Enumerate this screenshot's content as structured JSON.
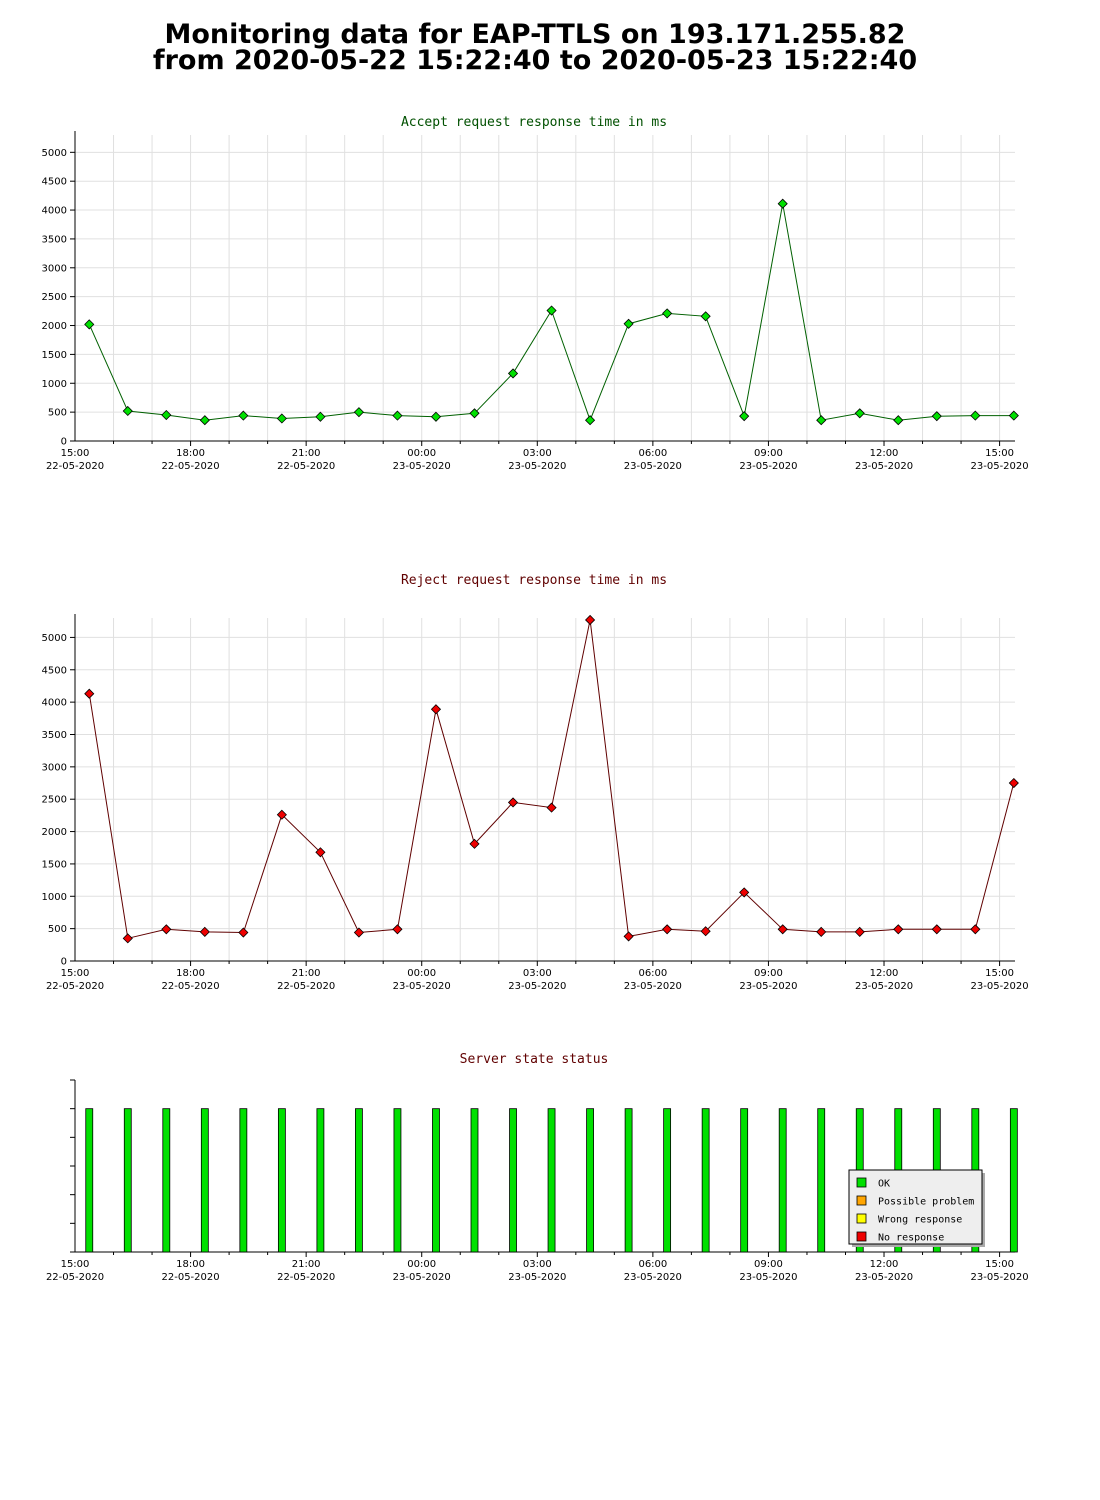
{
  "page": {
    "title_line1": "Monitoring data for EAP-TTLS on 193.171.255.82",
    "title_line2": "from 2020-05-22 15:22:40 to 2020-05-23 15:22:40"
  },
  "colors": {
    "accept_line": "#006000",
    "accept_marker": "#00e000",
    "reject_line": "#600000",
    "reject_marker": "#ee0000",
    "accept_title": "#005000",
    "reject_title": "#600000",
    "status_title": "#600000",
    "ok": "#00e000",
    "possible_problem": "#ffa500",
    "wrong_response": "#ffff00",
    "no_response": "#ee0000",
    "grid": "#e0e0e0"
  },
  "chart_data": [
    {
      "type": "line",
      "title": "Accept request response time in ms",
      "ylim": [
        0,
        5300
      ],
      "yticks": [
        0,
        500,
        1000,
        1500,
        2000,
        2500,
        3000,
        3500,
        4000,
        4500,
        5000
      ],
      "xlim_hours": [
        0,
        24.4
      ],
      "xticks": [
        {
          "hour": 0,
          "time": "15:00",
          "date": "22-05-2020"
        },
        {
          "hour": 3,
          "time": "18:00",
          "date": "22-05-2020"
        },
        {
          "hour": 6,
          "time": "21:00",
          "date": "22-05-2020"
        },
        {
          "hour": 9,
          "time": "00:00",
          "date": "23-05-2020"
        },
        {
          "hour": 12,
          "time": "03:00",
          "date": "23-05-2020"
        },
        {
          "hour": 15,
          "time": "06:00",
          "date": "23-05-2020"
        },
        {
          "hour": 18,
          "time": "09:00",
          "date": "23-05-2020"
        },
        {
          "hour": 21,
          "time": "12:00",
          "date": "23-05-2020"
        },
        {
          "hour": 24,
          "time": "15:00",
          "date": "23-05-2020"
        }
      ],
      "grid": true,
      "x": [
        0.37,
        1.37,
        2.37,
        3.37,
        4.37,
        5.37,
        6.37,
        7.37,
        8.37,
        9.37,
        10.37,
        11.37,
        12.37,
        13.37,
        14.37,
        15.37,
        16.37,
        17.37,
        18.37,
        19.37,
        20.37,
        21.37,
        22.37,
        23.37,
        24.37
      ],
      "values": [
        2020,
        520,
        450,
        360,
        440,
        390,
        420,
        500,
        440,
        420,
        480,
        1170,
        2260,
        360,
        2030,
        2210,
        2160,
        430,
        4110,
        360,
        480,
        360,
        430,
        440,
        440
      ]
    },
    {
      "type": "line",
      "title": "Reject request response time in ms",
      "ylim": [
        0,
        5300
      ],
      "yticks": [
        0,
        500,
        1000,
        1500,
        2000,
        2500,
        3000,
        3500,
        4000,
        4500,
        5000
      ],
      "xlim_hours": [
        0,
        24.4
      ],
      "xticks": [
        {
          "hour": 0,
          "time": "15:00",
          "date": "22-05-2020"
        },
        {
          "hour": 3,
          "time": "18:00",
          "date": "22-05-2020"
        },
        {
          "hour": 6,
          "time": "21:00",
          "date": "22-05-2020"
        },
        {
          "hour": 9,
          "time": "00:00",
          "date": "23-05-2020"
        },
        {
          "hour": 12,
          "time": "03:00",
          "date": "23-05-2020"
        },
        {
          "hour": 15,
          "time": "06:00",
          "date": "23-05-2020"
        },
        {
          "hour": 18,
          "time": "09:00",
          "date": "23-05-2020"
        },
        {
          "hour": 21,
          "time": "12:00",
          "date": "23-05-2020"
        },
        {
          "hour": 24,
          "time": "15:00",
          "date": "23-05-2020"
        }
      ],
      "grid": true,
      "x": [
        0.37,
        1.37,
        2.37,
        3.37,
        4.37,
        5.37,
        6.37,
        7.37,
        8.37,
        9.37,
        10.37,
        11.37,
        12.37,
        13.37,
        14.37,
        15.37,
        16.37,
        17.37,
        18.37,
        19.37,
        20.37,
        21.37,
        22.37,
        23.37,
        24.37
      ],
      "values": [
        4130,
        350,
        490,
        450,
        440,
        2260,
        1680,
        440,
        490,
        3890,
        1810,
        2450,
        2370,
        5270,
        380,
        490,
        460,
        1060,
        490,
        450,
        450,
        490,
        490,
        490,
        2750
      ]
    },
    {
      "type": "bar",
      "title": "Server state status",
      "xlim_hours": [
        0,
        24.4
      ],
      "xticks": [
        {
          "hour": 0,
          "time": "15:00",
          "date": "22-05-2020"
        },
        {
          "hour": 3,
          "time": "18:00",
          "date": "22-05-2020"
        },
        {
          "hour": 6,
          "time": "21:00",
          "date": "22-05-2020"
        },
        {
          "hour": 9,
          "time": "00:00",
          "date": "23-05-2020"
        },
        {
          "hour": 12,
          "time": "03:00",
          "date": "23-05-2020"
        },
        {
          "hour": 15,
          "time": "06:00",
          "date": "23-05-2020"
        },
        {
          "hour": 18,
          "time": "09:00",
          "date": "23-05-2020"
        },
        {
          "hour": 21,
          "time": "12:00",
          "date": "23-05-2020"
        },
        {
          "hour": 24,
          "time": "15:00",
          "date": "23-05-2020"
        }
      ],
      "grid": false,
      "x": [
        0.37,
        1.37,
        2.37,
        3.37,
        4.37,
        5.37,
        6.37,
        7.37,
        8.37,
        9.37,
        10.37,
        11.37,
        12.37,
        13.37,
        14.37,
        15.37,
        16.37,
        17.37,
        18.37,
        19.37,
        20.37,
        21.37,
        22.37,
        23.37,
        24.37
      ],
      "states": [
        "OK",
        "OK",
        "OK",
        "OK",
        "OK",
        "OK",
        "OK",
        "OK",
        "OK",
        "OK",
        "OK",
        "OK",
        "OK",
        "OK",
        "OK",
        "OK",
        "OK",
        "OK",
        "OK",
        "OK",
        "OK",
        "OK",
        "OK",
        "OK",
        "OK"
      ],
      "legend_placement": "bottom-right",
      "legend": [
        {
          "label": "OK",
          "color": "#00e000"
        },
        {
          "label": "Possible problem",
          "color": "#ffa500"
        },
        {
          "label": "Wrong response",
          "color": "#ffff00"
        },
        {
          "label": "No response",
          "color": "#ee0000"
        }
      ]
    }
  ]
}
